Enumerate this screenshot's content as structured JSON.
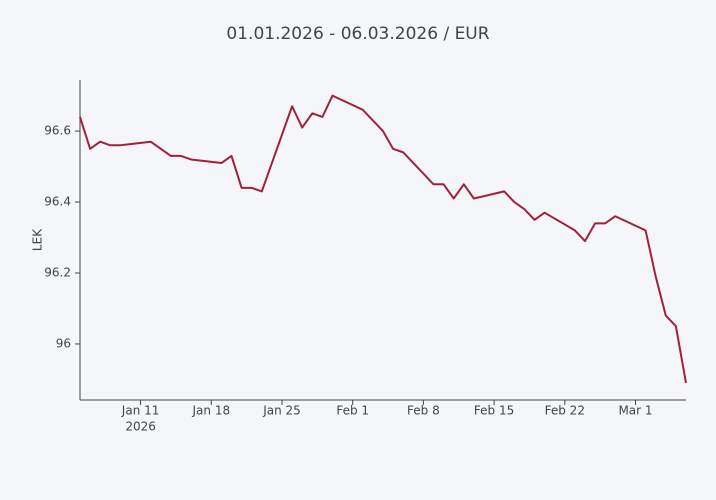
{
  "chart_data": {
    "type": "line",
    "title": "01.01.2026 - 06.03.2026 / EUR",
    "ylabel": "LEK",
    "x": [
      "2026-01-05",
      "2026-01-06",
      "2026-01-07",
      "2026-01-08",
      "2026-01-09",
      "2026-01-12",
      "2026-01-14",
      "2026-01-15",
      "2026-01-16",
      "2026-01-19",
      "2026-01-20",
      "2026-01-21",
      "2026-01-22",
      "2026-01-23",
      "2026-01-26",
      "2026-01-27",
      "2026-01-28",
      "2026-01-29",
      "2026-01-30",
      "2026-02-02",
      "2026-02-04",
      "2026-02-05",
      "2026-02-06",
      "2026-02-09",
      "2026-02-10",
      "2026-02-11",
      "2026-02-12",
      "2026-02-13",
      "2026-02-16",
      "2026-02-17",
      "2026-02-18",
      "2026-02-19",
      "2026-02-20",
      "2026-02-23",
      "2026-02-24",
      "2026-02-25",
      "2026-02-26",
      "2026-02-27",
      "2026-03-02",
      "2026-03-03",
      "2026-03-04",
      "2026-03-05",
      "2026-03-06"
    ],
    "series": [
      {
        "name": "EUR",
        "color": "#a3203a",
        "values": [
          96.64,
          96.55,
          96.57,
          96.56,
          96.56,
          96.57,
          96.53,
          96.53,
          96.52,
          96.51,
          96.53,
          96.44,
          96.44,
          96.43,
          96.67,
          96.61,
          96.65,
          96.64,
          96.7,
          96.66,
          96.6,
          96.55,
          96.54,
          96.45,
          96.45,
          96.41,
          96.45,
          96.41,
          96.43,
          96.4,
          96.38,
          96.35,
          96.37,
          96.32,
          96.29,
          96.34,
          96.34,
          96.36,
          96.32,
          96.19,
          96.08,
          96.05,
          95.89
        ]
      }
    ],
    "xlim": [
      "2026-01-05",
      "2026-03-06"
    ],
    "xticks": [
      {
        "value": "2026-01-11",
        "label": "Jan 11"
      },
      {
        "value": "2026-01-18",
        "label": "Jan 18"
      },
      {
        "value": "2026-01-25",
        "label": "Jan 25"
      },
      {
        "value": "2026-02-01",
        "label": "Feb 1"
      },
      {
        "value": "2026-02-08",
        "label": "Feb 8"
      },
      {
        "value": "2026-02-15",
        "label": "Feb 15"
      },
      {
        "value": "2026-02-22",
        "label": "Feb 22"
      },
      {
        "value": "2026-03-01",
        "label": "Mar 1"
      }
    ],
    "xtick_year": "2026",
    "ylim": [
      95.842,
      96.744
    ],
    "yticks": [
      96,
      96.2,
      96.4,
      96.6
    ],
    "grid": false
  }
}
